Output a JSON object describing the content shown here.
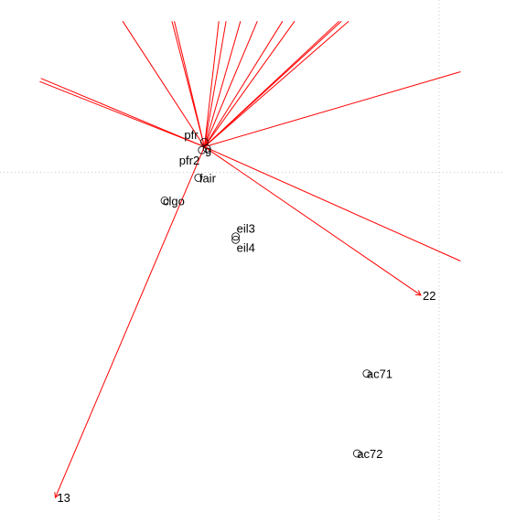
{
  "chart_data": {
    "type": "scatter",
    "subtype": "biplot",
    "title": "",
    "xlabel": "",
    "ylabel": "",
    "xlim": [
      -1.7,
      2.5
    ],
    "ylim": [
      -2.3,
      0.9
    ],
    "grid": "dotted reference lines through origin",
    "colors": {
      "points": "#000000",
      "vectors": "#ff0000",
      "grid": "#c8c8c8"
    },
    "points": [
      {
        "label": "pfr",
        "x": 0.0,
        "y": 0.03
      },
      {
        "label": "pfr2",
        "x": -0.02,
        "y": -0.02
      },
      {
        "label": "g",
        "x": 0.02,
        "y": -0.01
      },
      {
        "label": "fair",
        "x": -0.05,
        "y": -0.19
      },
      {
        "label": "clgo",
        "x": -0.33,
        "y": -0.33
      },
      {
        "label": "eil3",
        "x": 0.26,
        "y": -0.55
      },
      {
        "label": "eil4",
        "x": 0.26,
        "y": -0.57
      },
      {
        "label": "ac71",
        "x": 1.35,
        "y": -1.39
      },
      {
        "label": "ac72",
        "x": 1.27,
        "y": -1.88
      }
    ],
    "vectors": [
      {
        "label": "",
        "x": -0.68,
        "y": 0.77
      },
      {
        "label": "",
        "x": -0.27,
        "y": 0.77
      },
      {
        "label": "",
        "x": -0.25,
        "y": 0.77
      },
      {
        "label": "",
        "x": 0.12,
        "y": 0.77
      },
      {
        "label": "",
        "x": 0.18,
        "y": 0.77
      },
      {
        "label": "",
        "x": 0.3,
        "y": 0.77
      },
      {
        "label": "",
        "x": 0.44,
        "y": 0.77
      },
      {
        "label": "",
        "x": 0.65,
        "y": 0.77
      },
      {
        "label": "",
        "x": 0.75,
        "y": 0.77
      },
      {
        "label": "",
        "x": 1.12,
        "y": 0.77
      },
      {
        "label": "",
        "x": 1.14,
        "y": 0.77
      },
      {
        "label": "",
        "x": 1.2,
        "y": 0.77
      },
      {
        "label": "",
        "x": -1.36,
        "y": 0.42
      },
      {
        "label": "",
        "x": -1.37,
        "y": 0.4
      },
      {
        "label": "",
        "x": 2.13,
        "y": 0.46
      },
      {
        "label": "",
        "x": 2.13,
        "y": -0.7
      },
      {
        "label": "22",
        "x": 1.8,
        "y": -0.91
      },
      {
        "label": "13",
        "x": -1.24,
        "y": -2.15
      }
    ]
  }
}
